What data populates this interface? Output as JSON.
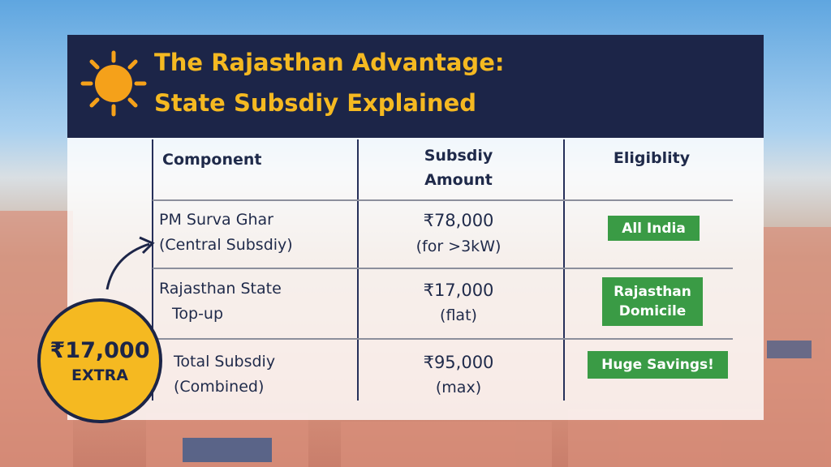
{
  "header": {
    "title": [
      "The Rajasthan Advantage:",
      "State Subsdiy Explained"
    ]
  },
  "table": {
    "headers": [
      [
        "Component"
      ],
      [
        "Subsdiy",
        "Amount"
      ],
      [
        "Eligiblity"
      ]
    ],
    "rows": [
      {
        "component": [
          "PM Surva Ghar",
          "(Central Subsdiy)"
        ],
        "amount": [
          "₹78,000",
          "(for >3kW)"
        ],
        "eligibility": [
          "All India"
        ]
      },
      {
        "component": [
          "Rajasthan State",
          "Top-up"
        ],
        "amount": [
          "₹17,000",
          "(flat)"
        ],
        "eligibility": [
          "Rajasthan",
          "Domicile"
        ]
      },
      {
        "component": [
          "Total Subsdiy",
          "(Combined)"
        ],
        "amount": [
          "₹95,000",
          "(max)"
        ],
        "eligibility": [
          "Huge Savings!"
        ]
      }
    ]
  },
  "badge": {
    "amount": "₹17,000",
    "label": "EXTRA"
  }
}
